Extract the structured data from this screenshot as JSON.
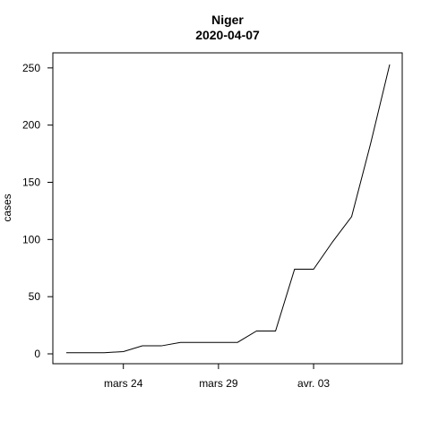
{
  "chart_data": {
    "type": "line",
    "title": "Niger",
    "subtitle": "2020-04-07",
    "xlabel": "",
    "ylabel": "cases",
    "x_tick_labels": [
      {
        "date": "2020-03-24",
        "label": "mars 24"
      },
      {
        "date": "2020-03-29",
        "label": "mars 29"
      },
      {
        "date": "2020-04-03",
        "label": "avr. 03"
      }
    ],
    "y_ticks": [
      0,
      50,
      100,
      150,
      200,
      250
    ],
    "ylim": [
      0,
      253
    ],
    "xlim": [
      "2020-03-21",
      "2020-04-07"
    ],
    "grid": false,
    "legend": "none",
    "line_color": "#000000",
    "series": [
      {
        "x": [
          "2020-03-21",
          "2020-03-22",
          "2020-03-23",
          "2020-03-24",
          "2020-03-25",
          "2020-03-26",
          "2020-03-27",
          "2020-03-28",
          "2020-03-29",
          "2020-03-30",
          "2020-03-31",
          "2020-04-01",
          "2020-04-02",
          "2020-04-03",
          "2020-04-04",
          "2020-04-05",
          "2020-04-06",
          "2020-04-07"
        ],
        "values": [
          1,
          1,
          1,
          2,
          7,
          7,
          10,
          10,
          10,
          10,
          20,
          20,
          74,
          74,
          98,
          120,
          184,
          253
        ]
      }
    ]
  }
}
